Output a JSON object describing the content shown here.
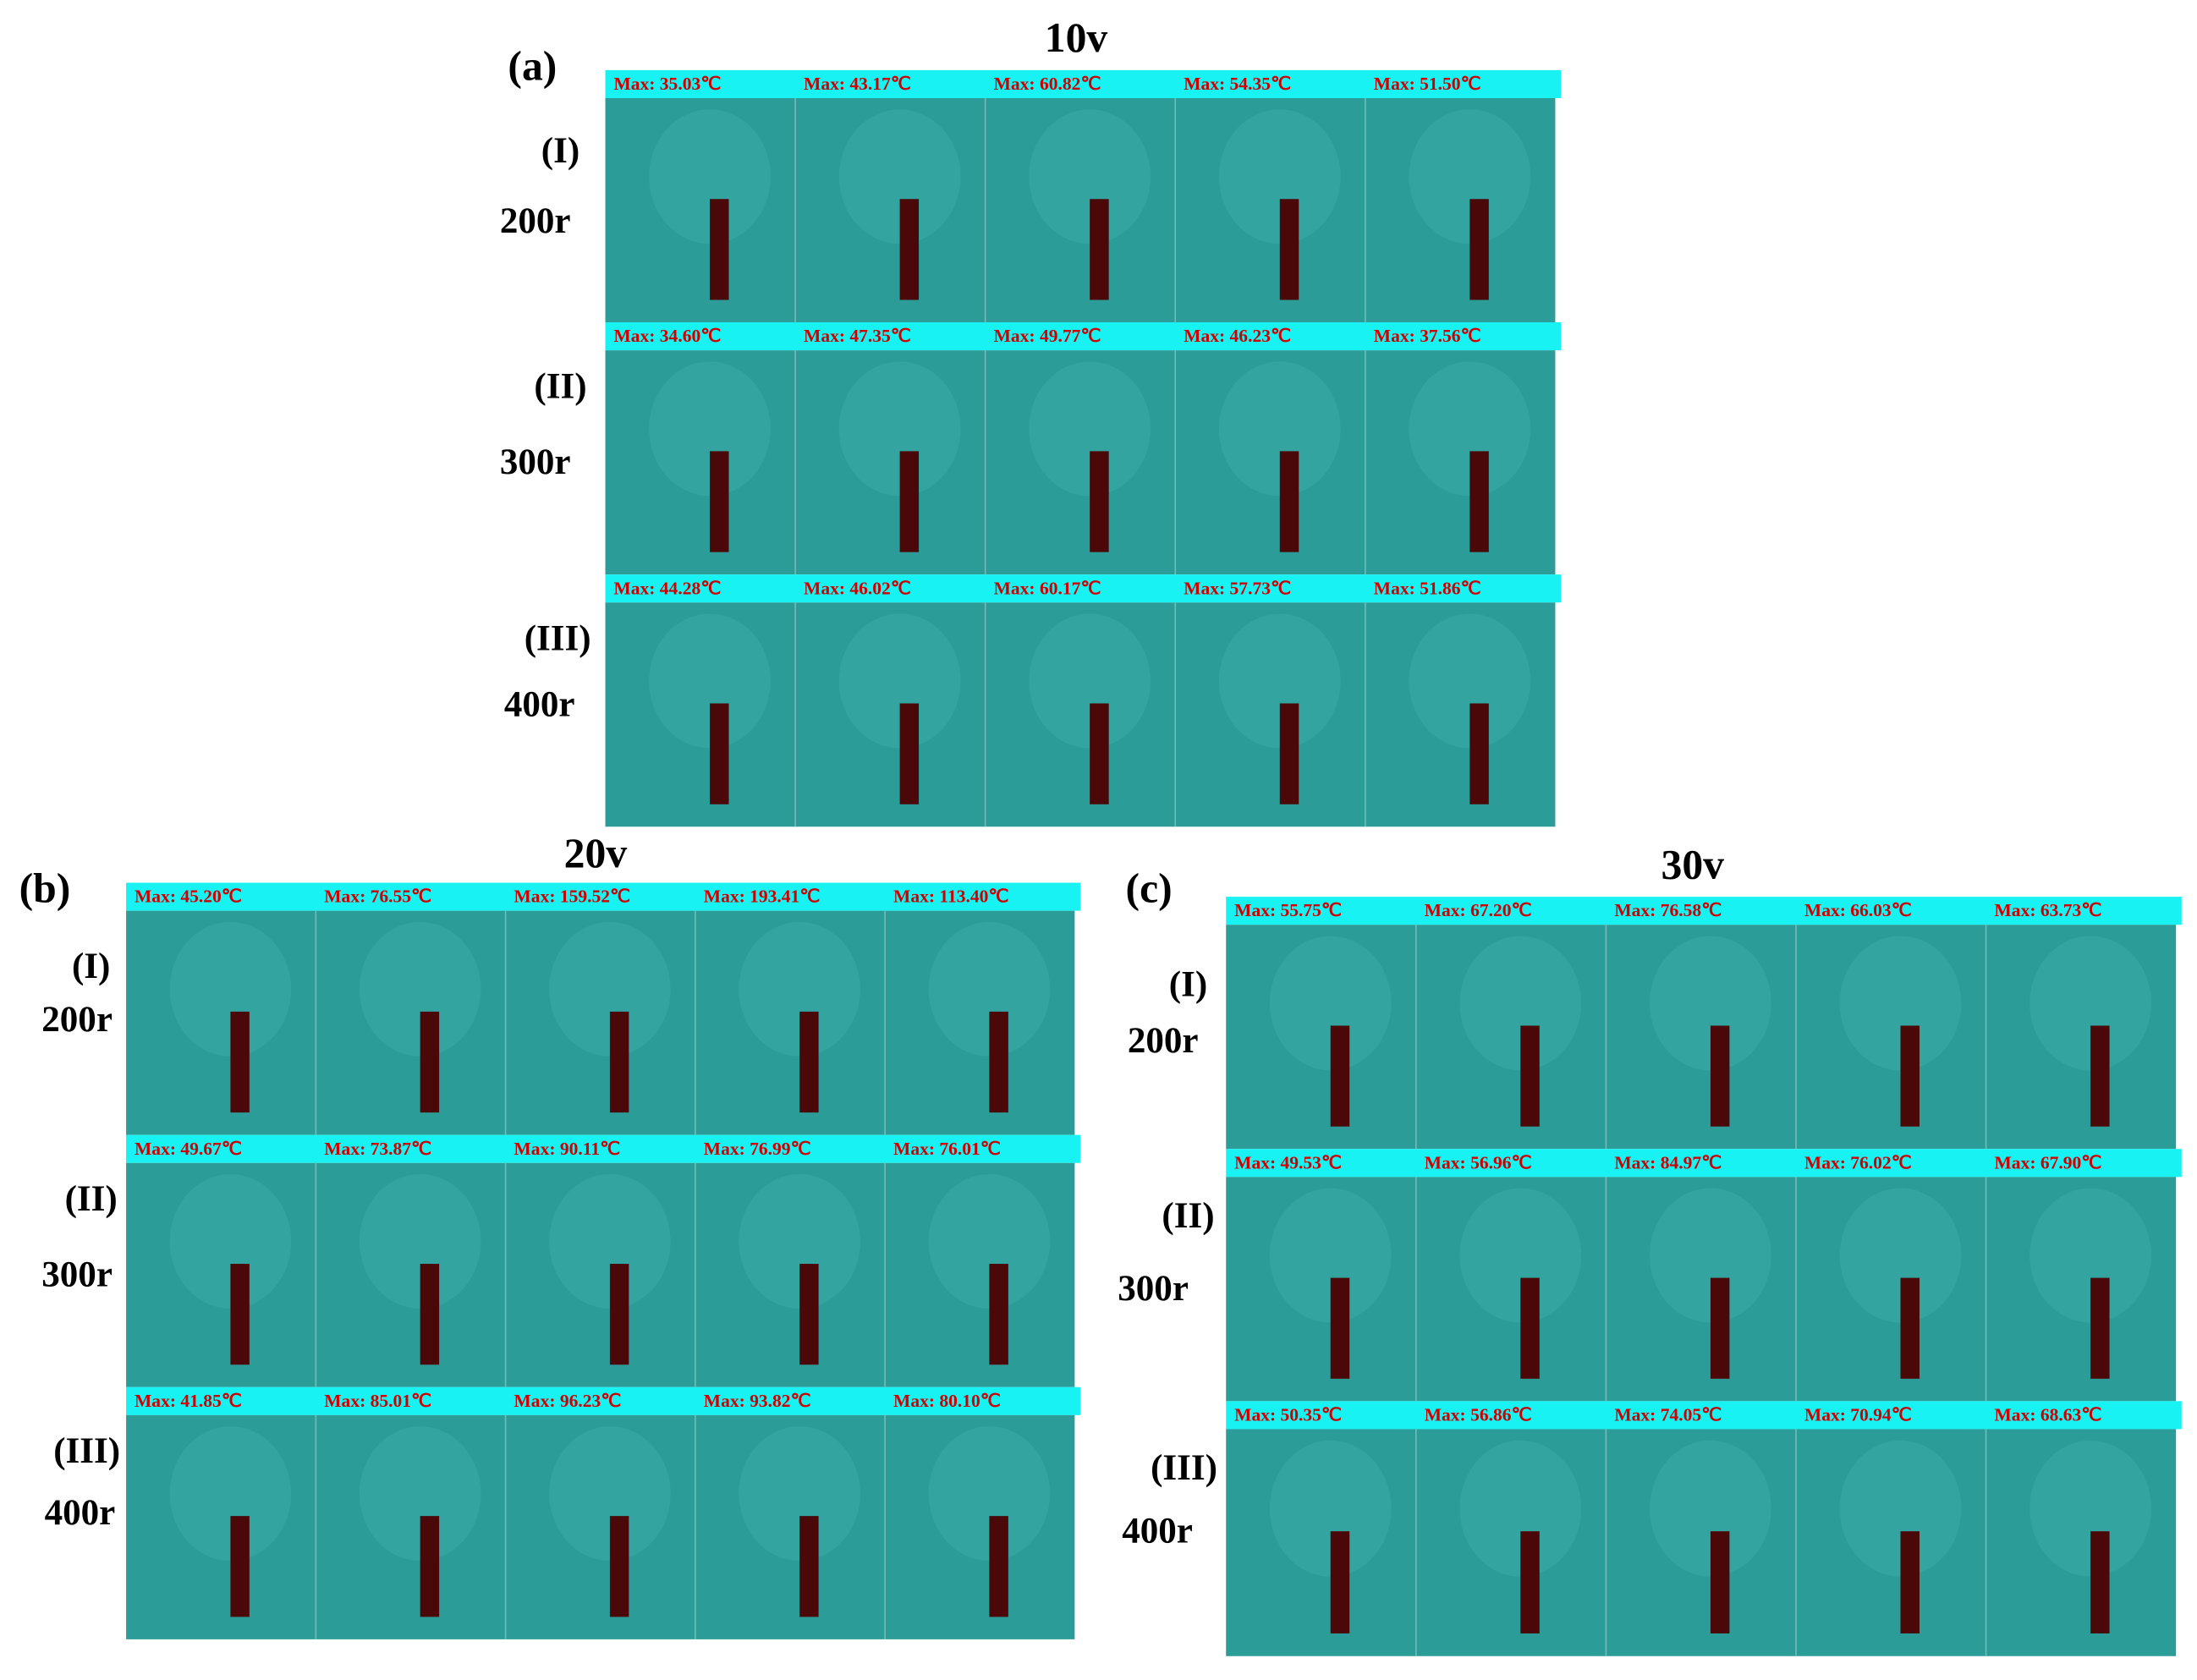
{
  "panels": [
    {
      "label": "(a)",
      "title": "10v",
      "rows": [
        {
          "roman": "(I)",
          "speed": "200r",
          "cells": [
            "Max:  35.03℃",
            "Max:  43.17℃",
            "Max:  60.82℃",
            "Max:  54.35℃",
            "Max:  51.50℃"
          ]
        },
        {
          "roman": "(II)",
          "speed": "300r",
          "cells": [
            "Max:  34.60℃",
            "Max:  47.35℃",
            "Max:  49.77℃",
            "Max:  46.23℃",
            "Max:  37.56℃"
          ]
        },
        {
          "roman": "(III)",
          "speed": "400r",
          "cells": [
            "Max:  44.28℃",
            "Max:  46.02℃",
            "Max:  60.17℃",
            "Max:  57.73℃",
            "Max:  51.86℃"
          ]
        }
      ]
    },
    {
      "label": "(b)",
      "title": "20v",
      "rows": [
        {
          "roman": "(I)",
          "speed": "200r",
          "cells": [
            "Max:  45.20℃",
            "Max:  76.55℃",
            "Max:  159.52℃",
            "Max:  193.41℃",
            "Max:  113.40℃"
          ]
        },
        {
          "roman": "(II)",
          "speed": "300r",
          "cells": [
            "Max:  49.67℃",
            "Max:  73.87℃",
            "Max:  90.11℃",
            "Max:  76.99℃",
            "Max:  76.01℃"
          ]
        },
        {
          "roman": "(III)",
          "speed": "400r",
          "cells": [
            "Max:  41.85℃",
            "Max:  85.01℃",
            "Max:  96.23℃",
            "Max:  93.82℃",
            "Max:  80.10℃"
          ]
        }
      ]
    },
    {
      "label": "(c)",
      "title": "30v",
      "rows": [
        {
          "roman": "(I)",
          "speed": "200r",
          "cells": [
            "Max:  55.75℃",
            "Max:  67.20℃",
            "Max:  76.58℃",
            "Max:  66.03℃",
            "Max:  63.73℃"
          ]
        },
        {
          "roman": "(II)",
          "speed": "300r",
          "cells": [
            "Max:  49.53℃",
            "Max:  56.96℃",
            "Max:  84.97℃",
            "Max:  76.02℃",
            "Max:  67.90℃"
          ]
        },
        {
          "roman": "(III)",
          "speed": "400r",
          "cells": [
            "Max:  50.35℃",
            "Max:  56.86℃",
            "Max:  74.05℃",
            "Max:  70.94℃",
            "Max:  68.63℃"
          ]
        }
      ]
    }
  ]
}
